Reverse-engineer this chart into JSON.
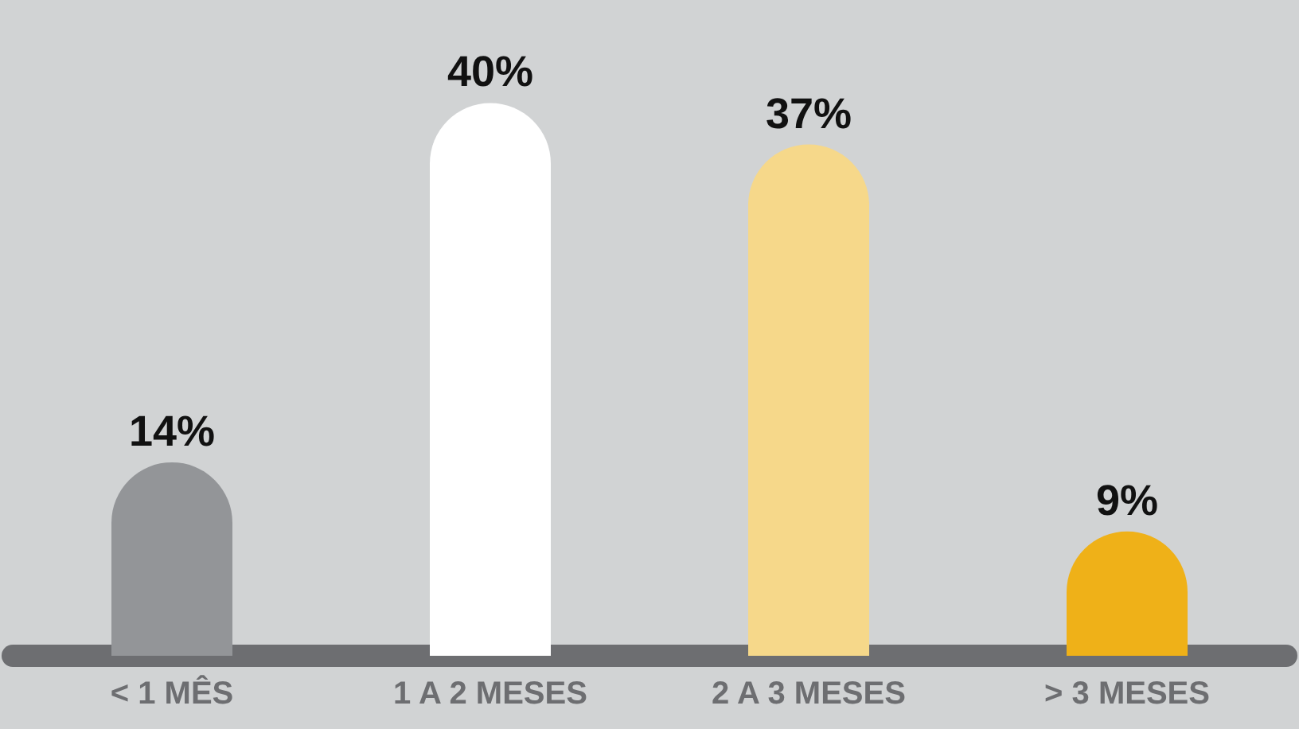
{
  "chart_data": {
    "type": "bar",
    "categories": [
      "< 1 MÊS",
      "1 A 2 MESES",
      "2 A 3 MESES",
      "> 3 MESES"
    ],
    "values": [
      14,
      40,
      37,
      9
    ],
    "colors": [
      "#939598",
      "#ffffff",
      "#f6d88a",
      "#efb118"
    ],
    "value_labels": [
      "14%",
      "40%",
      "37%",
      "9%"
    ],
    "grid": false
  }
}
